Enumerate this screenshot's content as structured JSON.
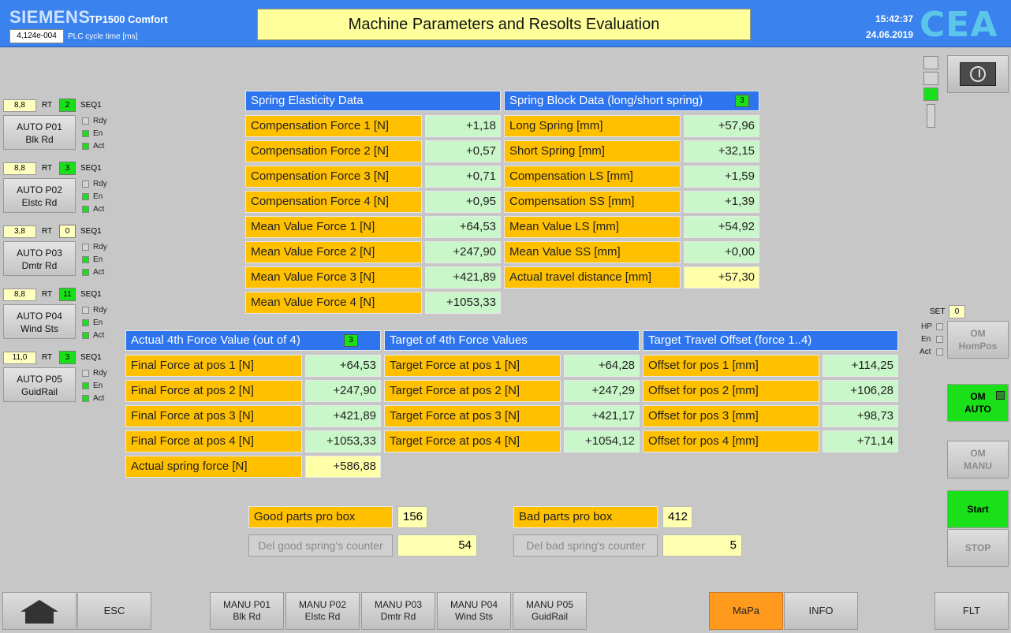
{
  "header": {
    "brand": "SIEMENS",
    "model": "TP1500 Comfort",
    "cycle_value": "4,124e-004",
    "cycle_label": "PLC cycle time [ms]",
    "title": "Machine Parameters and Resolts Evaluation",
    "time": "15:42:37",
    "date": "24.06.2019",
    "logo": "CEA"
  },
  "stations": [
    {
      "num": "8,8",
      "rt": "RT",
      "seq_val": "2",
      "seq_color": "#19e019",
      "seq_label": "SEQ1",
      "line1": "AUTO P01",
      "line2": "Blk Rd",
      "rdy": "Rdy",
      "en": "En",
      "act": "Act"
    },
    {
      "num": "8,8",
      "rt": "RT",
      "seq_val": "3",
      "seq_color": "#19e019",
      "seq_label": "SEQ1",
      "line1": "AUTO P02",
      "line2": "Elstc Rd",
      "rdy": "Rdy",
      "en": "En",
      "act": "Act"
    },
    {
      "num": "3,8",
      "rt": "RT",
      "seq_val": "0",
      "seq_color": "#ffffc0",
      "seq_label": "SEQ1",
      "line1": "AUTO P03",
      "line2": "Dmtr Rd",
      "rdy": "Rdy",
      "en": "En",
      "act": "Act"
    },
    {
      "num": "8,8",
      "rt": "RT",
      "seq_val": "11",
      "seq_color": "#19e019",
      "seq_label": "SEQ1",
      "line1": "AUTO P04",
      "line2": "Wind Sts",
      "rdy": "Rdy",
      "en": "En",
      "act": "Act"
    },
    {
      "num": "11,0",
      "rt": "RT",
      "seq_val": "3",
      "seq_color": "#19e019",
      "seq_label": "SEQ1",
      "line1": "AUTO P05",
      "line2": "GuidRail",
      "rdy": "Rdy",
      "en": "En",
      "act": "Act"
    }
  ],
  "elasticity": {
    "title": "Spring Elasticity Data",
    "rows": [
      {
        "label": "Compensation Force 1 [N]",
        "value": "+1,18"
      },
      {
        "label": "Compensation Force 2 [N]",
        "value": "+0,57"
      },
      {
        "label": "Compensation Force 3 [N]",
        "value": "+0,71"
      },
      {
        "label": "Compensation Force 4 [N]",
        "value": "+0,95"
      },
      {
        "label": "Mean Value Force 1 [N]",
        "value": "+64,53"
      },
      {
        "label": "Mean Value Force 2 [N]",
        "value": "+247,90"
      },
      {
        "label": "Mean Value Force 3 [N]",
        "value": "+421,89"
      },
      {
        "label": "Mean Value Force 4 [N]",
        "value": "+1053,33"
      }
    ]
  },
  "block": {
    "title": "Spring Block Data (long/short spring)",
    "badge": "3",
    "rows": [
      {
        "label": "Long Spring [mm]",
        "value": "+57,96"
      },
      {
        "label": "Short Spring [mm]",
        "value": "+32,15"
      },
      {
        "label": "Compensation LS [mm]",
        "value": "+1,59"
      },
      {
        "label": "Compensation SS [mm]",
        "value": "+1,39"
      },
      {
        "label": "Mean Value LS [mm]",
        "value": "+54,92"
      },
      {
        "label": "Mean Value SS [mm]",
        "value": "+0,00"
      },
      {
        "label": "Actual travel distance [mm]",
        "value": "+57,30"
      }
    ]
  },
  "actual": {
    "title": "Actual 4th Force Value (out of 4)",
    "badge": "3",
    "rows": [
      {
        "label": "Final Force at pos 1 [N]",
        "value": "+64,53"
      },
      {
        "label": "Final Force at pos 2 [N]",
        "value": "+247,90"
      },
      {
        "label": "Final Force at pos 3 [N]",
        "value": "+421,89"
      },
      {
        "label": "Final Force at pos 4 [N]",
        "value": "+1053,33"
      },
      {
        "label": "Actual spring force [N]",
        "value": "+586,88"
      }
    ]
  },
  "target": {
    "title": "Target of 4th Force Values",
    "rows": [
      {
        "label": "Target Force at pos 1 [N]",
        "value": "+64,28"
      },
      {
        "label": "Target Force at pos 2 [N]",
        "value": "+247,29"
      },
      {
        "label": "Target Force at pos 3 [N]",
        "value": "+421,17"
      },
      {
        "label": "Target Force at pos 4 [N]",
        "value": "+1054,12"
      }
    ]
  },
  "offset": {
    "title": "Target Travel Offset (force 1..4)",
    "rows": [
      {
        "label": "Offset for pos 1 [mm]",
        "value": "+114,25"
      },
      {
        "label": "Offset for pos 2 [mm]",
        "value": "+106,28"
      },
      {
        "label": "Offset for pos 3 [mm]",
        "value": "+98,73"
      },
      {
        "label": "Offset for pos 4 [mm]",
        "value": "+71,14"
      }
    ]
  },
  "counters": {
    "good_label": "Good parts pro box",
    "good_value": "156",
    "bad_label": "Bad parts pro box",
    "bad_value": "412",
    "del_good_label": "Del good spring's counter",
    "del_good_value": "54",
    "del_bad_label": "Del bad spring's counter",
    "del_bad_value": "5"
  },
  "homing": {
    "set_label": "SET",
    "set_value": "0",
    "hp": "HP",
    "en": "En",
    "act": "Act"
  },
  "modes": {
    "om_hompos_1": "OM",
    "om_hompos_2": "HomPos",
    "om_auto_1": "OM",
    "om_auto_2": "AUTO",
    "om_manu_1": "OM",
    "om_manu_2": "MANU",
    "start": "Start",
    "stop": "STOP"
  },
  "nav": {
    "esc": "ESC",
    "manu": [
      {
        "l1": "MANU P01",
        "l2": "Blk Rd"
      },
      {
        "l1": "MANU P02",
        "l2": "Elstc Rd"
      },
      {
        "l1": "MANU P03",
        "l2": "Dmtr Rd"
      },
      {
        "l1": "MANU P04",
        "l2": "Wind Sts"
      },
      {
        "l1": "MANU P05",
        "l2": "GuidRail"
      }
    ],
    "mapa": "MaPa",
    "info": "INFO",
    "flt": "FLT"
  },
  "colors": {
    "header_blue": "#3a82ee",
    "label_orange": "#ffc000",
    "value_green": "#c9f7c9",
    "active_green": "#19e019",
    "mapa_orange": "#ff9a1e"
  }
}
